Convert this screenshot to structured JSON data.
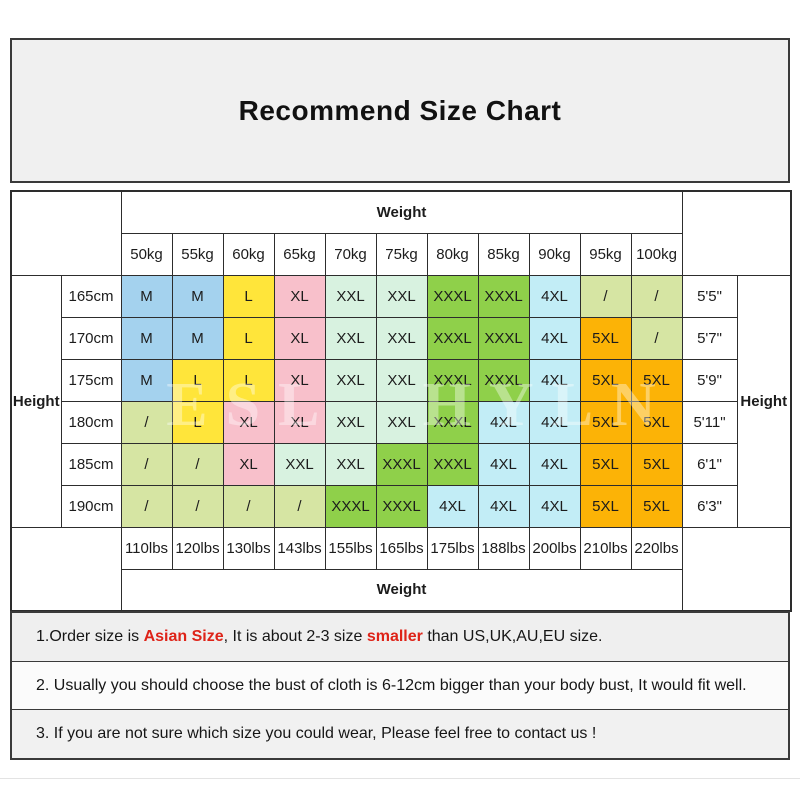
{
  "title": "Recommend Size Chart",
  "watermark": "ESL HYLN",
  "chart_data": {
    "type": "table",
    "title": "Recommend Size Chart",
    "weight_axis_top_label": "Weight",
    "weight_axis_bottom_label": "Weight",
    "height_axis_left_label": "Height",
    "height_axis_right_label": "Height",
    "weights_kg": [
      "50kg",
      "55kg",
      "60kg",
      "65kg",
      "70kg",
      "75kg",
      "80kg",
      "85kg",
      "90kg",
      "95kg",
      "100kg"
    ],
    "weights_lbs": [
      "110lbs",
      "120lbs",
      "130lbs",
      "143lbs",
      "155lbs",
      "165lbs",
      "175lbs",
      "188lbs",
      "200lbs",
      "210lbs",
      "220lbs"
    ],
    "heights_cm": [
      "165cm",
      "170cm",
      "175cm",
      "180cm",
      "185cm",
      "190cm"
    ],
    "heights_imperial": [
      "5'5\"",
      "5'7\"",
      "5'9\"",
      "5'11\"",
      "6'1\"",
      "6'3\""
    ],
    "no_size_symbol": "/",
    "size_matrix": [
      [
        "M",
        "M",
        "L",
        "XL",
        "XXL",
        "XXL",
        "XXXL",
        "XXXL",
        "4XL",
        "/",
        "/"
      ],
      [
        "M",
        "M",
        "L",
        "XL",
        "XXL",
        "XXL",
        "XXXL",
        "XXXL",
        "4XL",
        "5XL",
        "/"
      ],
      [
        "M",
        "L",
        "L",
        "XL",
        "XXL",
        "XXL",
        "XXXL",
        "XXXL",
        "4XL",
        "5XL",
        "5XL"
      ],
      [
        "/",
        "L",
        "XL",
        "XL",
        "XXL",
        "XXL",
        "XXXL",
        "4XL",
        "4XL",
        "5XL",
        "5XL"
      ],
      [
        "/",
        "/",
        "XL",
        "XXL",
        "XXL",
        "XXXL",
        "XXXL",
        "4XL",
        "4XL",
        "5XL",
        "5XL"
      ],
      [
        "/",
        "/",
        "/",
        "/",
        "XXXL",
        "XXXL",
        "4XL",
        "4XL",
        "4XL",
        "5XL",
        "5XL"
      ]
    ]
  },
  "size_colors": {
    "M": "#a4d2ee",
    "L": "#ffe53a",
    "XL": "#f8c0cb",
    "XXL": "#d8f2e0",
    "XXXL": "#8fd04a",
    "4XL": "#c2edf6",
    "5XL": "#fcb306",
    "/": "#d6e5a3"
  },
  "notes": [
    {
      "parts": [
        {
          "text": "1.Order size is ",
          "red": false
        },
        {
          "text": "Asian Size",
          "red": true
        },
        {
          "text": ", It is about 2-3 size ",
          "red": false
        },
        {
          "text": "smaller",
          "red": true
        },
        {
          "text": " than US,UK,AU,EU size.",
          "red": false
        }
      ]
    },
    {
      "parts": [
        {
          "text": "2. Usually you should choose the bust of cloth is 6-12cm bigger than your body bust, It would fit well.",
          "red": false
        }
      ]
    },
    {
      "parts": [
        {
          "text": "3. If you are not sure which size you could wear, Please feel free to contact us !",
          "red": false
        }
      ]
    }
  ]
}
